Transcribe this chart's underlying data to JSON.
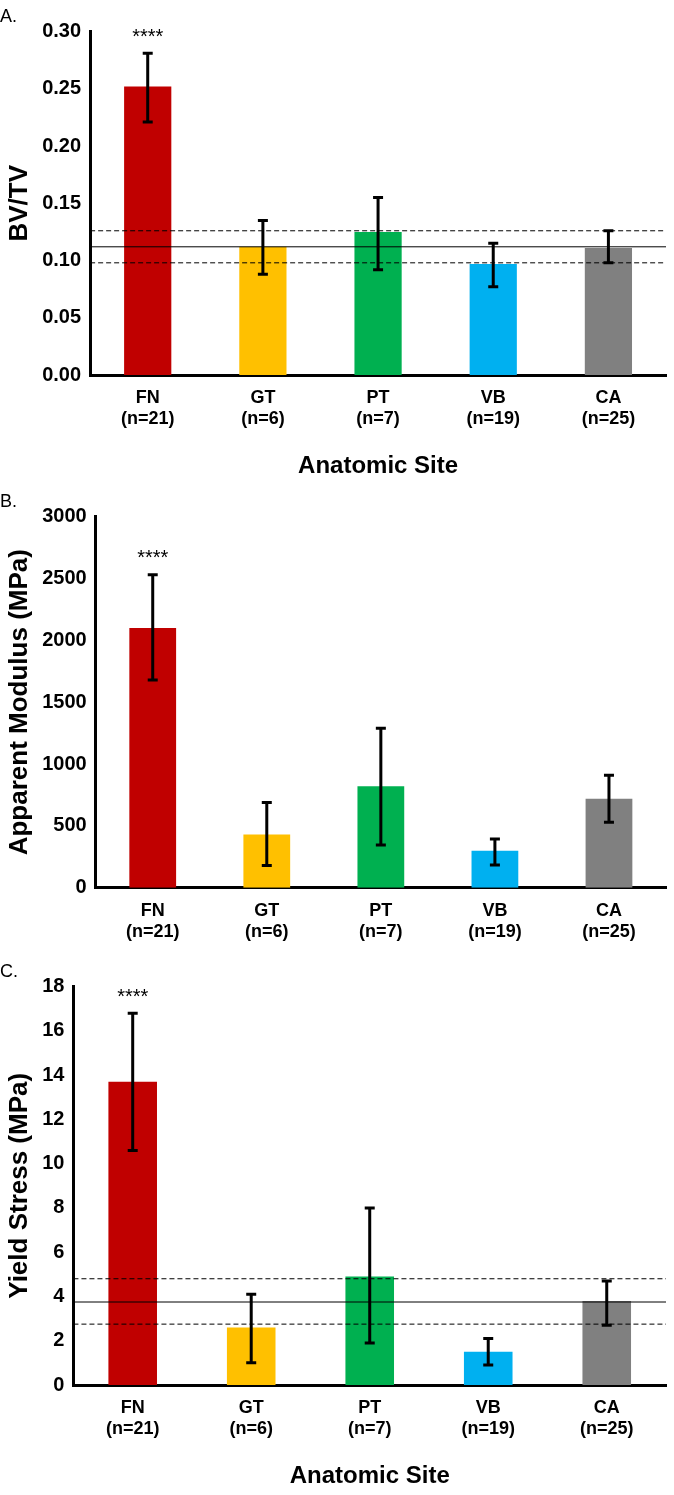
{
  "chart_data": [
    {
      "type": "bar",
      "title": "A.",
      "ylabel": "BV/TV",
      "xlabel": "Anatomic Site",
      "categories": [
        "FN\n(n=21)",
        "GT\n(n=6)",
        "PT\n(n=7)",
        "VB\n(n=19)",
        "CA\n(n=25)"
      ],
      "values": [
        0.252,
        0.112,
        0.125,
        0.097,
        0.111
      ],
      "colors": [
        "#c00000",
        "#ffc000",
        "#00b050",
        "#00b0f0",
        "#808080"
      ],
      "errors": [
        [
          0.221,
          0.281
        ],
        [
          0.088,
          0.135
        ],
        [
          0.092,
          0.155
        ],
        [
          0.077,
          0.115
        ],
        [
          0.098,
          0.126
        ]
      ],
      "ylim": [
        0,
        0.3
      ],
      "yticks": [
        {
          "value": 0,
          "label": "0.00"
        },
        {
          "value": 0.05,
          "label": "0.05"
        },
        {
          "value": 0.1,
          "label": "0.10"
        },
        {
          "value": 0.15,
          "label": "0.15"
        },
        {
          "value": 0.2,
          "label": "0.20"
        },
        {
          "value": 0.25,
          "label": "0.25"
        },
        {
          "value": 0.3,
          "label": "0.30"
        }
      ],
      "ref_lines": [
        {
          "axis": "y",
          "value": 0.112,
          "line_style": "solid"
        },
        {
          "axis": "y",
          "value": 0.126,
          "line_style": "dashed"
        },
        {
          "axis": "y",
          "value": 0.098,
          "line_style": "dashed"
        }
      ],
      "annotations": [
        "****"
      ],
      "grid": false,
      "legend": false
    },
    {
      "type": "bar",
      "title": "B.",
      "ylabel": "Apparent Modulus (MPa)",
      "categories": [
        "FN\n(n=21)",
        "GT\n(n=6)",
        "PT\n(n=7)",
        "VB\n(n=19)",
        "CA\n(n=25)"
      ],
      "values": [
        2100,
        430,
        820,
        300,
        720
      ],
      "colors": [
        "#c00000",
        "#ffc000",
        "#00b050",
        "#00b0f0",
        "#808080"
      ],
      "errors": [
        [
          1680,
          2530
        ],
        [
          180,
          690
        ],
        [
          345,
          1290
        ],
        [
          185,
          395
        ],
        [
          530,
          910
        ]
      ],
      "ylim": [
        0,
        3000
      ],
      "yticks": [
        0,
        500,
        1000,
        1500,
        2000,
        2500,
        3000
      ],
      "annotations": [
        "****"
      ],
      "grid": false,
      "legend": false
    },
    {
      "type": "bar",
      "title": "C.",
      "ylabel": "Yield Stress (MPa)",
      "xlabel": "Anatomic Site",
      "categories": [
        "FN\n(n=21)",
        "GT\n(n=6)",
        "PT\n(n=7)",
        "VB\n(n=19)",
        "CA\n(n=25)"
      ],
      "values": [
        13.7,
        2.6,
        4.9,
        1.5,
        3.8
      ],
      "colors": [
        "#c00000",
        "#ffc000",
        "#00b050",
        "#00b0f0",
        "#808080"
      ],
      "errors": [
        [
          10.6,
          16.8
        ],
        [
          1.0,
          4.1
        ],
        [
          1.9,
          8.0
        ],
        [
          0.9,
          2.1
        ],
        [
          2.7,
          4.7
        ]
      ],
      "ylim": [
        0,
        18
      ],
      "yticks": [
        0,
        2,
        4,
        6,
        8,
        10,
        12,
        14,
        16,
        18
      ],
      "ref_lines": [
        {
          "axis": "y",
          "value": 3.75,
          "line_style": "solid"
        },
        {
          "axis": "y",
          "value": 4.8,
          "line_style": "dashed"
        },
        {
          "axis": "y",
          "value": 2.75,
          "line_style": "dashed"
        }
      ],
      "annotations": [
        "****"
      ],
      "grid": false,
      "legend": false
    }
  ]
}
